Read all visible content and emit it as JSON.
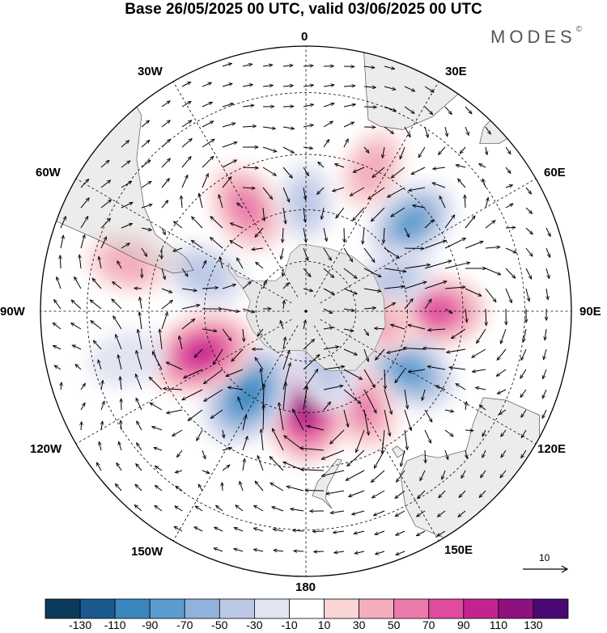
{
  "title": "Base 26/05/2025 00 UTC, valid 03/06/2025 00 UTC",
  "brand": {
    "name": "MODES",
    "mark": "©"
  },
  "longitude_labels": {
    "lon_0": "0",
    "lon_30e": "30E",
    "lon_60e": "60E",
    "lon_90e": "90E",
    "lon_120e": "120E",
    "lon_150e": "150E",
    "lon_180": "180",
    "lon_150w": "150W",
    "lon_120w": "120W",
    "lon_90w": "90W",
    "lon_60w": "60W",
    "lon_30w": "30W"
  },
  "reference_vector": {
    "value": "10"
  },
  "colorbar": {
    "colors": [
      "#0c3a5c",
      "#1a5a8e",
      "#3a86bf",
      "#5a9ccd",
      "#8fb3da",
      "#bcc9e6",
      "#e2e4f2",
      "#ffffff",
      "#f9d5d6",
      "#f3adbd",
      "#ea7bab",
      "#e04b9e",
      "#c4238f",
      "#8e1180",
      "#4a0873"
    ],
    "tick_labels": [
      "-130",
      "-110",
      "-90",
      "-70",
      "-50",
      "-30",
      "-10",
      "10",
      "30",
      "50",
      "70",
      "90",
      "110",
      "130"
    ]
  },
  "anomaly_cells": [
    {
      "id": "c1",
      "lon": 90,
      "lat": -52,
      "value": 80
    },
    {
      "id": "c2",
      "lon": 120,
      "lat": -55,
      "value": -75
    },
    {
      "id": "c3",
      "lon": 150,
      "lat": -58,
      "value": 60
    },
    {
      "id": "c4",
      "lon": 180,
      "lat": -62,
      "value": 115
    },
    {
      "id": "c5",
      "lon": -145,
      "lat": -60,
      "value": -100
    },
    {
      "id": "c6",
      "lon": -112,
      "lat": -57,
      "value": 95
    },
    {
      "id": "c7",
      "lon": -70,
      "lat": -58,
      "value": -45
    },
    {
      "id": "c8",
      "lon": -30,
      "lat": -55,
      "value": 60
    },
    {
      "id": "c9",
      "lon": 0,
      "lat": -58,
      "value": -30
    },
    {
      "id": "c10",
      "lon": 50,
      "lat": -50,
      "value": -70
    },
    {
      "id": "c11",
      "lon": 25,
      "lat": -45,
      "value": 35
    },
    {
      "id": "c12",
      "lon": 70,
      "lat": -62,
      "value": -35
    },
    {
      "id": "c13",
      "lon": 160,
      "lat": -72,
      "value": -45
    },
    {
      "id": "c14",
      "lon": -75,
      "lat": -38,
      "value": 35
    },
    {
      "id": "c15",
      "lon": -105,
      "lat": -38,
      "value": -25
    },
    {
      "id": "c16",
      "lon": 100,
      "lat": -68,
      "value": 35
    }
  ]
}
